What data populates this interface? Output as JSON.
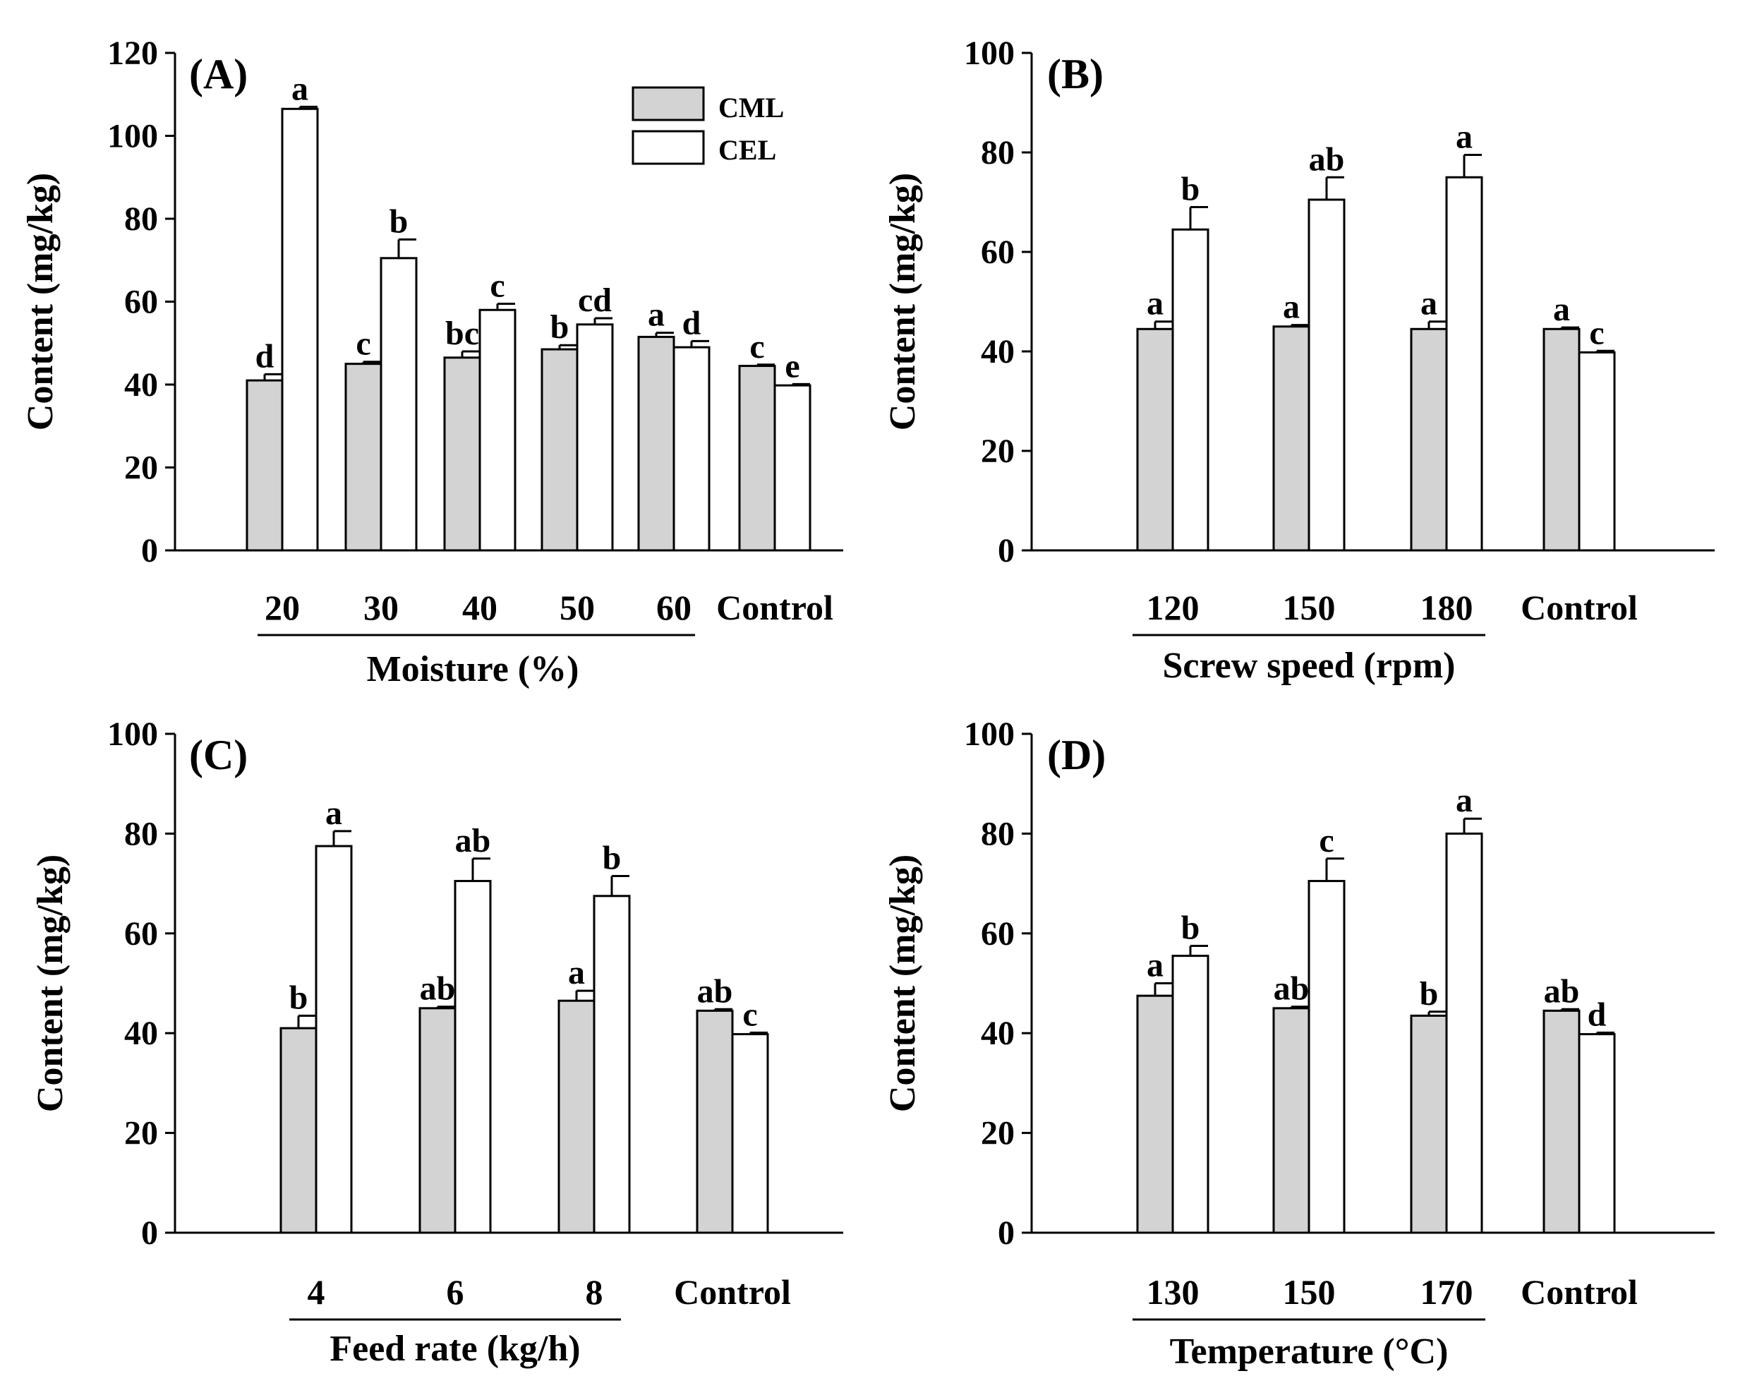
{
  "legend": {
    "cml": "CML",
    "cel": "CEL"
  },
  "colors": {
    "cml": "#d3d3d3",
    "cel": "#ffffff",
    "axis": "#000000"
  },
  "chart_data": [
    {
      "type": "bar",
      "panel_label": "(A)",
      "ylabel": "Content (mg/kg)",
      "xlabel": "Moisture (%)",
      "ylim": [
        0,
        120
      ],
      "yticks": [
        0,
        20,
        40,
        60,
        80,
        100,
        120
      ],
      "categories": [
        "20",
        "30",
        "40",
        "50",
        "60",
        "Control"
      ],
      "grouped_categories": 5,
      "series": [
        {
          "name": "CML",
          "values": [
            41,
            45,
            46.5,
            48.5,
            51.5,
            44.5
          ],
          "errors": [
            1.5,
            0.5,
            1.5,
            1,
            1,
            0.3
          ],
          "letters": [
            "d",
            "c",
            "bc",
            "b",
            "a",
            "c"
          ]
        },
        {
          "name": "CEL",
          "values": [
            106.5,
            70.5,
            58,
            54.5,
            49,
            39.8
          ],
          "errors": [
            0.5,
            4.5,
            1.5,
            1.5,
            1.5,
            0.3
          ],
          "letters": [
            "a",
            "b",
            "c",
            "cd",
            "d",
            "e"
          ]
        }
      ]
    },
    {
      "type": "bar",
      "panel_label": "(B)",
      "ylabel": "Content (mg/kg)",
      "xlabel": "Screw speed (rpm)",
      "ylim": [
        0,
        100
      ],
      "yticks": [
        0,
        20,
        40,
        60,
        80,
        100
      ],
      "categories": [
        "120",
        "150",
        "180",
        "Control"
      ],
      "grouped_categories": 3,
      "series": [
        {
          "name": "CML",
          "values": [
            44.5,
            45,
            44.5,
            44.5
          ],
          "errors": [
            1.5,
            0.3,
            1.5,
            0.3
          ],
          "letters": [
            "a",
            "a",
            "a",
            "a"
          ]
        },
        {
          "name": "CEL",
          "values": [
            64.5,
            70.5,
            75,
            39.8
          ],
          "errors": [
            4.5,
            4.5,
            4.5,
            0.3
          ],
          "letters": [
            "b",
            "ab",
            "a",
            "c"
          ]
        }
      ]
    },
    {
      "type": "bar",
      "panel_label": "(C)",
      "ylabel": "Content (mg/kg)",
      "xlabel": "Feed rate (kg/h)",
      "ylim": [
        0,
        100
      ],
      "yticks": [
        0,
        20,
        40,
        60,
        80,
        100
      ],
      "categories": [
        "4",
        "6",
        "8",
        "Control"
      ],
      "grouped_categories": 3,
      "series": [
        {
          "name": "CML",
          "values": [
            41,
            45,
            46.5,
            44.5
          ],
          "errors": [
            2.5,
            0.3,
            2,
            0.3
          ],
          "letters": [
            "b",
            "ab",
            "a",
            "ab"
          ]
        },
        {
          "name": "CEL",
          "values": [
            77.5,
            70.5,
            67.5,
            39.8
          ],
          "errors": [
            3,
            4.5,
            4,
            0.3
          ],
          "letters": [
            "a",
            "ab",
            "b",
            "c"
          ]
        }
      ]
    },
    {
      "type": "bar",
      "panel_label": "(D)",
      "ylabel": "Content (mg/kg)",
      "xlabel": "Temperature (°C)",
      "ylim": [
        0,
        100
      ],
      "yticks": [
        0,
        20,
        40,
        60,
        80,
        100
      ],
      "categories": [
        "130",
        "150",
        "170",
        "Control"
      ],
      "grouped_categories": 3,
      "series": [
        {
          "name": "CML",
          "values": [
            47.5,
            45,
            43.5,
            44.5
          ],
          "errors": [
            2.5,
            0.3,
            0.8,
            0.3
          ],
          "letters": [
            "a",
            "ab",
            "b",
            "ab"
          ]
        },
        {
          "name": "CEL",
          "values": [
            55.5,
            70.5,
            80,
            39.8
          ],
          "errors": [
            2,
            4.5,
            3,
            0.3
          ],
          "letters": [
            "b",
            "c",
            "a",
            "d"
          ]
        }
      ]
    }
  ]
}
